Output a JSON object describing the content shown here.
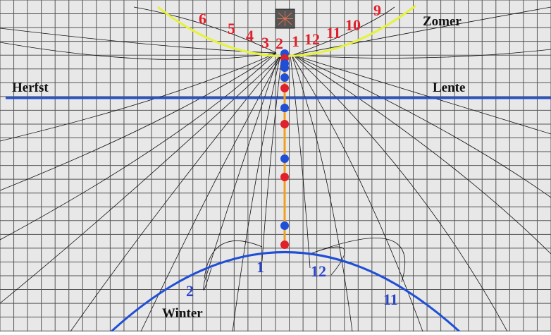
{
  "labels": {
    "zomer": "Zomer",
    "herfst": "Herfst",
    "lente": "Lente",
    "winter": "Winter"
  },
  "summer_hours": [
    "6",
    "5",
    "4",
    "3",
    "2",
    "1",
    "12",
    "11",
    "10",
    "9"
  ],
  "winter_hours": [
    "2",
    "1",
    "12",
    "11"
  ],
  "colors": {
    "grid_background": "#e8e8e8",
    "grid_lines": "#555555",
    "summer_curve": "#e6f23c",
    "equinox_line": "#1f4fd6",
    "winter_curve": "#1f4fd6",
    "meridian": "#f0a020",
    "dot_red": "#e0202a",
    "dot_blue": "#1f4fd6",
    "hour_red": "#e0202a",
    "hour_blue": "#2a44c8",
    "gnomon": "#555555",
    "gnomon_mark": "#e07050",
    "season_text": "#111111"
  },
  "icons": {
    "gnomon": "gnomon-icon"
  }
}
